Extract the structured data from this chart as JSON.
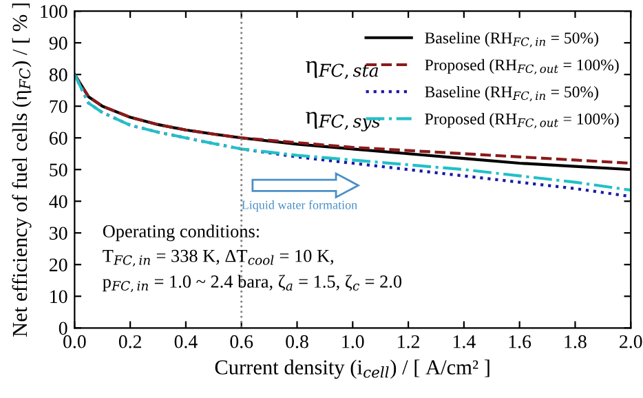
{
  "chart_data": {
    "type": "line",
    "xlabel": "Current density (i$_{cell}$) / [ A/cm² ]",
    "ylabel": "Net efficiency of fuel cells (η$_{FC}$) / [ % ]",
    "x": [
      0.0,
      0.05,
      0.1,
      0.2,
      0.3,
      0.4,
      0.5,
      0.6,
      0.8,
      1.0,
      1.2,
      1.4,
      1.6,
      1.8,
      2.0
    ],
    "series": [
      {
        "name": "Baseline (RH$_{FC,in}$ = 50%)",
        "color": "#000000",
        "line_style": "solid",
        "values": [
          80,
          73,
          70,
          66.5,
          64.2,
          62.5,
          61.2,
          60,
          58,
          56.5,
          55,
          53.5,
          52,
          51,
          50
        ]
      },
      {
        "name": "Proposed (RH$_{FC,out}$ = 100%)",
        "color": "#8b1a1a",
        "line_style": "dashed",
        "values": [
          80,
          73,
          70,
          66.5,
          64.2,
          62.5,
          61.2,
          60,
          58.5,
          57,
          56,
          55,
          54,
          53,
          52
        ]
      },
      {
        "name": "Baseline (RH$_{FC,in}$ = 50%)",
        "color": "#1a1aa6",
        "line_style": "dotted",
        "values": [
          80,
          71,
          68,
          64,
          61.8,
          60,
          58.2,
          56.5,
          54,
          52,
          50,
          48,
          46,
          44,
          41.5
        ]
      },
      {
        "name": "Proposed (RH$_{FC,out}$ = 100%)",
        "color": "#22c0c8",
        "line_style": "dashdot",
        "values": [
          80,
          71,
          68,
          64,
          61.8,
          60,
          58.2,
          56.5,
          54.5,
          53,
          51.5,
          50,
          48,
          46,
          43.5
        ]
      }
    ],
    "xlim": [
      0.0,
      2.0
    ],
    "xticks": [
      {
        "value": 0.0,
        "label": "0.0"
      },
      0.2,
      0.4,
      0.6,
      0.8,
      {
        "value": 1.0,
        "label": "1.0"
      },
      1.2,
      1.4,
      1.6,
      1.8,
      {
        "value": 2.0,
        "label": "2.0"
      }
    ],
    "ylim": [
      0,
      100
    ],
    "yticks": [
      0,
      10,
      20,
      30,
      40,
      50,
      60,
      70,
      80,
      90,
      100
    ],
    "ref_lines": [
      {
        "axis": "x",
        "value": 0.6,
        "color": "#808080",
        "line_style": "dotted"
      }
    ],
    "annotations": [
      "η$_{FC,sta}$",
      "η$_{FC,sys}$",
      "Liquid water formation",
      "Operating conditions:",
      "T$_{FC,in}$ = 338 K, ΔT$_{cool}$ = 10 K,",
      "p$_{FC,in}$ = 1.0 ~ 2.4 bara, ζ$_{a}$ = 1.5, ζ$_{c}$ = 2.0"
    ],
    "legend": "top right",
    "grid": false
  }
}
